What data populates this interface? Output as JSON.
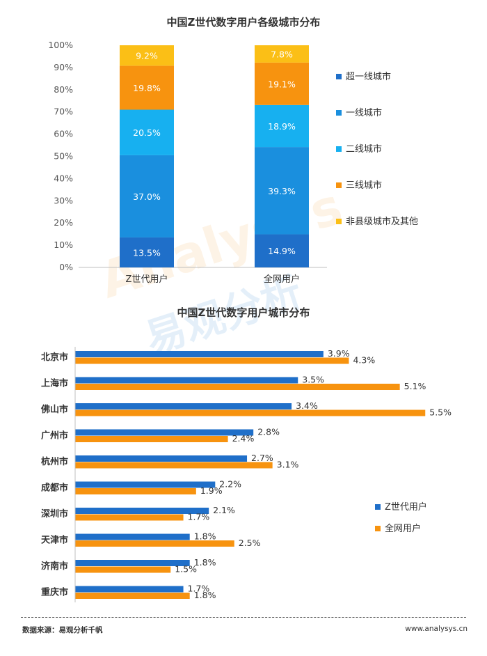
{
  "watermark": {
    "brand_en": "Analysys",
    "brand_cn": "易观分析"
  },
  "footer": {
    "source": "数据来源：易观分析千帆",
    "site": "www.analysys.cn"
  },
  "chart_data": [
    {
      "type": "bar",
      "stacked": true,
      "title": "中国Z世代数字用户各级城市分布",
      "categories": [
        "Z世代用户",
        "全网用户"
      ],
      "ylim": [
        0,
        100
      ],
      "yticks": [
        "0%",
        "10%",
        "20%",
        "30%",
        "40%",
        "50%",
        "60%",
        "70%",
        "80%",
        "90%",
        "100%"
      ],
      "legend_position": "right",
      "series": [
        {
          "name": "超一线城市",
          "color": "#1f6fc9",
          "values": [
            13.5,
            14.9
          ],
          "labels": [
            "13.5%",
            "14.9%"
          ]
        },
        {
          "name": "一线城市",
          "color": "#1a8fde",
          "values": [
            37.0,
            39.3
          ],
          "labels": [
            "37.0%",
            "39.3%"
          ]
        },
        {
          "name": "二线城市",
          "color": "#17b0f0",
          "values": [
            20.5,
            18.9
          ],
          "labels": [
            "20.5%",
            "18.9%"
          ]
        },
        {
          "name": "三线城市",
          "color": "#f7930f",
          "values": [
            19.8,
            19.1
          ],
          "labels": [
            "19.8%",
            "19.1%"
          ]
        },
        {
          "name": "非县级城市及其他",
          "color": "#fbbf16",
          "values": [
            9.2,
            7.8
          ],
          "labels": [
            "9.2%",
            "7.8%"
          ]
        }
      ]
    },
    {
      "type": "bar",
      "orientation": "horizontal",
      "title": "中国Z世代数字用户城市分布",
      "categories": [
        "北京市",
        "上海市",
        "佛山市",
        "广州市",
        "杭州市",
        "成都市",
        "深圳市",
        "天津市",
        "济南市",
        "重庆市"
      ],
      "xlim": [
        0,
        5.5
      ],
      "legend_position": "right",
      "series": [
        {
          "name": "Z世代用户",
          "color": "#1f6fc9",
          "values": [
            3.9,
            3.5,
            3.4,
            2.8,
            2.7,
            2.2,
            2.1,
            1.8,
            1.8,
            1.7
          ],
          "labels": [
            "3.9%",
            "3.5%",
            "3.4%",
            "2.8%",
            "2.7%",
            "2.2%",
            "2.1%",
            "1.8%",
            "1.8%",
            "1.7%"
          ]
        },
        {
          "name": "全网用户",
          "color": "#f7930f",
          "values": [
            4.3,
            5.1,
            5.5,
            2.4,
            3.1,
            1.9,
            1.7,
            2.5,
            1.5,
            1.8
          ],
          "labels": [
            "4.3%",
            "5.1%",
            "5.5%",
            "2.4%",
            "3.1%",
            "1.9%",
            "1.7%",
            "2.5%",
            "1.5%",
            "1.8%"
          ]
        }
      ]
    }
  ]
}
